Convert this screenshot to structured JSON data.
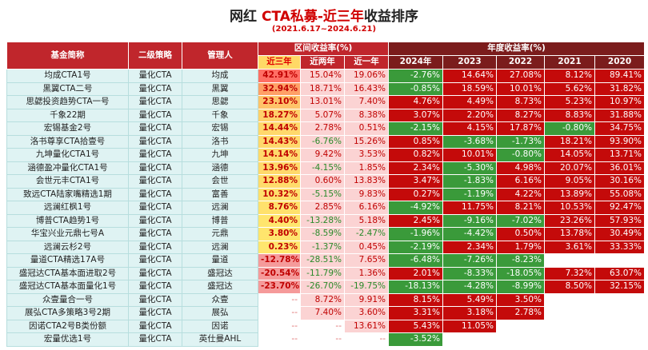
{
  "header": {
    "title_parts": [
      "网红 ",
      "CTA私募-近三年",
      "收益排序"
    ],
    "subtitle": "(2021.6.17~2024.6.21)"
  },
  "table": {
    "group_headers": [
      "基金简称",
      "二级策略",
      "管理人",
      "区间收益率(%)",
      "年度收益率(%)"
    ],
    "sub_headers": [
      "近三年",
      "近两年",
      "近一年",
      "2024年",
      "2023",
      "2022",
      "2021",
      "2020"
    ],
    "rows": [
      [
        "均成CTA1号",
        "量化CTA",
        "均成",
        "42.91%",
        "15.04%",
        "19.06%",
        "-2.76%",
        "14.64%",
        "27.08%",
        "8.12%",
        "89.41%"
      ],
      [
        "黑翼CTA二号",
        "量化CTA",
        "黑翼",
        "32.94%",
        "18.71%",
        "16.43%",
        "-0.85%",
        "18.59%",
        "10.01%",
        "5.62%",
        "31.82%"
      ],
      [
        "思勰投资趋势CTA一号",
        "量化CTA",
        "思勰",
        "23.10%",
        "13.01%",
        "7.40%",
        "4.76%",
        "4.49%",
        "8.73%",
        "5.23%",
        "10.97%"
      ],
      [
        "千象22期",
        "量化CTA",
        "千象",
        "18.27%",
        "5.07%",
        "8.38%",
        "3.07%",
        "2.20%",
        "8.27%",
        "8.83%",
        "31.88%"
      ],
      [
        "宏锡基金2号",
        "量化CTA",
        "宏锡",
        "14.44%",
        "2.78%",
        "0.51%",
        "-2.15%",
        "4.15%",
        "17.87%",
        "-0.80%",
        "34.75%"
      ],
      [
        "洛书尊享CTA拾壹号",
        "量化CTA",
        "洛书",
        "14.43%",
        "-6.76%",
        "15.26%",
        "0.85%",
        "-3.68%",
        "-1.73%",
        "18.21%",
        "93.90%"
      ],
      [
        "九坤量化CTA1号",
        "量化CTA",
        "九坤",
        "14.14%",
        "9.42%",
        "3.53%",
        "0.82%",
        "10.01%",
        "-0.80%",
        "14.05%",
        "13.71%"
      ],
      [
        "涵德盈冲量化CTA1号",
        "量化CTA",
        "涵德",
        "13.96%",
        "-4.15%",
        "1.85%",
        "2.34%",
        "-5.30%",
        "4.98%",
        "20.07%",
        "36.01%"
      ],
      [
        "会世元丰CTA1号",
        "量化CTA",
        "会世",
        "12.88%",
        "0.60%",
        "13.83%",
        "3.47%",
        "-1.83%",
        "6.16%",
        "9.05%",
        "30.16%"
      ],
      [
        "致远CTA陆家嘴精选1期",
        "量化CTA",
        "富善",
        "10.32%",
        "-5.15%",
        "9.83%",
        "0.27%",
        "-1.19%",
        "4.22%",
        "13.89%",
        "55.08%"
      ],
      [
        "远澜红枫1号",
        "量化CTA",
        "远澜",
        "8.76%",
        "2.85%",
        "6.16%",
        "-4.92%",
        "11.75%",
        "8.21%",
        "10.53%",
        "92.47%"
      ],
      [
        "博普CTA趋势1号",
        "量化CTA",
        "博普",
        "4.40%",
        "-13.28%",
        "5.18%",
        "2.45%",
        "-9.16%",
        "-7.02%",
        "23.26%",
        "57.93%"
      ],
      [
        "华宝兴业元鼎七号A",
        "量化CTA",
        "元鼎",
        "3.80%",
        "-8.59%",
        "-2.47%",
        "-1.96%",
        "-4.42%",
        "0.50%",
        "13.78%",
        "30.49%"
      ],
      [
        "远澜云杉2号",
        "量化CTA",
        "远澜",
        "0.23%",
        "-1.37%",
        "0.45%",
        "-2.19%",
        "2.34%",
        "1.79%",
        "3.61%",
        "33.33%"
      ],
      [
        "量道CTA精选17A号",
        "量化CTA",
        "量道",
        "-12.78%",
        "-28.51%",
        "7.65%",
        "-6.48%",
        "-7.26%",
        "-8.23%",
        null,
        null
      ],
      [
        "盛冠达CTA基本面进取2号",
        "量化CTA",
        "盛冠达",
        "-20.54%",
        "-11.79%",
        "1.36%",
        "2.01%",
        "-8.33%",
        "-18.05%",
        "7.32%",
        "63.07%"
      ],
      [
        "盛冠达CTA基本面量化1号",
        "量化CTA",
        "盛冠达",
        "-23.70%",
        "-26.70%",
        "-19.75%",
        "-18.13%",
        "-4.28%",
        "-8.99%",
        "8.50%",
        "32.15%"
      ],
      [
        "众壹量合一号",
        "量化CTA",
        "众壹",
        "--",
        "8.72%",
        "9.91%",
        "8.15%",
        "5.49%",
        "3.50%",
        null,
        null
      ],
      [
        "展弘CTA多策略3号2期",
        "量化CTA",
        "展弘",
        "--",
        "7.40%",
        "3.60%",
        "3.31%",
        "3.18%",
        "2.78%",
        null,
        null
      ],
      [
        "因诺CTA2号B类份额",
        "量化CTA",
        "因诺",
        "--",
        "--",
        "13.61%",
        "5.43%",
        "11.05%",
        null,
        null,
        null
      ],
      [
        "宏量优选1号",
        "量化CTA",
        "英仕曼AHL",
        "--",
        "--",
        "--",
        "-3.52%",
        null,
        null,
        null,
        null
      ]
    ]
  }
}
